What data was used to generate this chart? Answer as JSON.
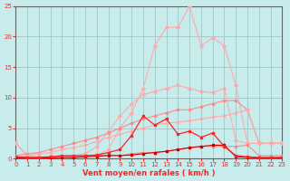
{
  "x": [
    0,
    1,
    2,
    3,
    4,
    5,
    6,
    7,
    8,
    9,
    10,
    11,
    12,
    13,
    14,
    15,
    16,
    17,
    18,
    19,
    20,
    21,
    22,
    23
  ],
  "line_spike": [
    2.5,
    0.5,
    0.3,
    0.3,
    0.3,
    0.3,
    0.3,
    0.5,
    1.5,
    5.0,
    7.5,
    11.5,
    18.5,
    21.5,
    21.5,
    25.0,
    18.5,
    19.8,
    18.5,
    12.0,
    2.5,
    2.5,
    2.5,
    2.5
  ],
  "line_medium": [
    2.5,
    0.5,
    0.3,
    0.3,
    0.3,
    0.5,
    0.8,
    2.0,
    4.5,
    7.0,
    9.0,
    10.5,
    11.0,
    11.5,
    12.0,
    11.5,
    11.0,
    10.8,
    11.5,
    3.0,
    2.5,
    2.5,
    2.5,
    2.5
  ],
  "line_slope1": [
    0.5,
    0.8,
    1.0,
    1.5,
    2.0,
    2.5,
    3.0,
    3.5,
    4.2,
    5.0,
    5.8,
    6.5,
    7.0,
    7.5,
    8.0,
    8.0,
    8.5,
    9.0,
    9.5,
    9.5,
    8.0,
    2.5,
    2.5,
    2.5
  ],
  "line_slope2": [
    0.3,
    0.5,
    0.8,
    1.0,
    1.5,
    1.8,
    2.2,
    2.8,
    3.5,
    4.0,
    4.5,
    5.0,
    5.5,
    5.8,
    6.0,
    6.2,
    6.5,
    6.8,
    7.0,
    7.5,
    8.0,
    2.5,
    2.5,
    2.5
  ],
  "line_flat_red": [
    0.3,
    0.2,
    0.1,
    0.2,
    0.3,
    0.3,
    0.4,
    0.5,
    0.6,
    0.5,
    0.8,
    1.0,
    1.0,
    1.2,
    1.5,
    1.8,
    2.0,
    2.0,
    2.0,
    2.0,
    2.2,
    0.5,
    0.5,
    0.5
  ],
  "line_redspike": [
    0.3,
    0.2,
    0.2,
    0.3,
    0.5,
    0.5,
    0.5,
    0.6,
    1.0,
    1.5,
    3.8,
    7.0,
    5.5,
    6.5,
    4.0,
    4.5,
    3.5,
    4.2,
    2.0,
    0.5,
    0.3,
    0.2,
    0.2,
    0.2
  ],
  "line_darkflat": [
    0.1,
    0.1,
    0.1,
    0.1,
    0.2,
    0.2,
    0.3,
    0.4,
    0.5,
    0.5,
    0.6,
    0.8,
    1.0,
    1.2,
    1.5,
    1.8,
    2.0,
    2.2,
    2.2,
    0.3,
    0.2,
    0.1,
    0.1,
    0.1
  ],
  "bg_color": "#c8ecec",
  "grid_color": "#a0c8c8",
  "color_light_pink": "#ffaaaa",
  "color_mid_pink": "#ff8888",
  "color_red": "#ff2222",
  "color_dark_red": "#cc0000",
  "xlabel": "Vent moyen/en rafales ( km/h )",
  "xlim": [
    0,
    23
  ],
  "ylim": [
    0,
    25
  ],
  "yticks": [
    0,
    5,
    10,
    15,
    20,
    25
  ],
  "xticks": [
    0,
    1,
    2,
    3,
    4,
    5,
    6,
    7,
    8,
    9,
    10,
    11,
    12,
    13,
    14,
    15,
    16,
    17,
    18,
    19,
    20,
    21,
    22,
    23
  ]
}
